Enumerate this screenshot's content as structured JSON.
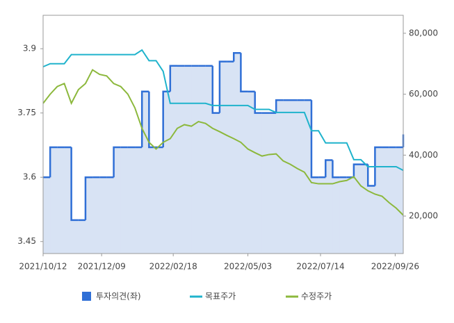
{
  "chart_data": {
    "type": "line",
    "x": [
      "2021/10/12",
      "2021/10/19",
      "2021/10/26",
      "2021/11/02",
      "2021/11/09",
      "2021/11/16",
      "2021/11/23",
      "2021/11/30",
      "2021/12/07",
      "2021/12/14",
      "2021/12/21",
      "2021/12/28",
      "2022/01/04",
      "2022/01/11",
      "2022/01/18",
      "2022/01/25",
      "2022/02/01",
      "2022/02/08",
      "2022/02/15",
      "2022/02/22",
      "2022/03/01",
      "2022/03/08",
      "2022/03/15",
      "2022/03/22",
      "2022/03/29",
      "2022/04/05",
      "2022/04/12",
      "2022/04/19",
      "2022/04/26",
      "2022/05/03",
      "2022/05/10",
      "2022/05/17",
      "2022/05/24",
      "2022/05/31",
      "2022/06/07",
      "2022/06/14",
      "2022/06/21",
      "2022/06/28",
      "2022/07/05",
      "2022/07/12",
      "2022/07/19",
      "2022/07/26",
      "2022/08/02",
      "2022/08/09",
      "2022/08/16",
      "2022/08/23",
      "2022/08/30",
      "2022/09/06",
      "2022/09/13",
      "2022/09/20",
      "2022/09/27",
      "2022/10/04"
    ],
    "xlim": [
      "2021/10/12",
      "2022/10/04"
    ],
    "xticks": [
      "2021/10/12",
      "2021/12/09",
      "2022/02/18",
      "2022/05/03",
      "2022/07/14",
      "2022/09/26"
    ],
    "ylim": [
      3.422,
      3.978
    ],
    "yticks": [
      3.45,
      3.6,
      3.75,
      3.9
    ],
    "y2lim": [
      7700,
      85900
    ],
    "y2ticks": [
      {
        "value": 20000,
        "label": "20,000"
      },
      {
        "value": 40000,
        "label": "40,000"
      },
      {
        "value": 60000,
        "label": "60,000"
      },
      {
        "value": 80000,
        "label": "80,000"
      }
    ],
    "grid": false,
    "series": [
      {
        "name": "투자의견(좌)",
        "color": "#2f6fd6",
        "fill": "#d8e3f4",
        "step": true,
        "values": [
          3.6,
          3.67,
          3.67,
          3.67,
          3.5,
          3.5,
          3.6,
          3.6,
          3.6,
          3.6,
          3.67,
          3.67,
          3.67,
          3.67,
          3.8,
          3.67,
          3.67,
          3.8,
          3.86,
          3.86,
          3.86,
          3.86,
          3.86,
          3.86,
          3.75,
          3.87,
          3.87,
          3.89,
          3.8,
          3.8,
          3.75,
          3.75,
          3.75,
          3.78,
          3.78,
          3.78,
          3.78,
          3.78,
          3.6,
          3.6,
          3.64,
          3.6,
          3.6,
          3.6,
          3.63,
          3.63,
          3.58,
          3.67,
          3.67,
          3.67,
          3.67,
          3.7
        ]
      },
      {
        "name": "목표주가",
        "color": "#1fb3cc",
        "axis": "y2",
        "values": [
          69000,
          70000,
          70000,
          70000,
          73000,
          73000,
          73000,
          73000,
          73000,
          73000,
          73000,
          73000,
          73000,
          73000,
          74500,
          71000,
          71000,
          67500,
          57000,
          57000,
          57000,
          57000,
          57000,
          57000,
          56300,
          56300,
          56300,
          56300,
          56300,
          56300,
          55000,
          55000,
          55000,
          54000,
          54000,
          54000,
          54000,
          54000,
          48000,
          48000,
          44000,
          44000,
          44000,
          44000,
          38500,
          38500,
          36200,
          36200,
          36200,
          36200,
          36200,
          35000
        ]
      },
      {
        "name": "수정주가",
        "color": "#8cb83c",
        "axis": "y2",
        "values": [
          57000,
          60000,
          62500,
          63500,
          57000,
          61500,
          63500,
          68000,
          66500,
          66000,
          63500,
          62500,
          60000,
          55500,
          48800,
          44200,
          42000,
          44200,
          45400,
          48800,
          50000,
          49500,
          51000,
          50400,
          48800,
          47700,
          46500,
          45400,
          44200,
          42000,
          40800,
          39700,
          40200,
          40400,
          38100,
          37000,
          35600,
          34400,
          31000,
          30600,
          30600,
          30600,
          31300,
          31700,
          32900,
          29900,
          28300,
          27200,
          26500,
          24400,
          22600,
          20300
        ]
      }
    ]
  }
}
